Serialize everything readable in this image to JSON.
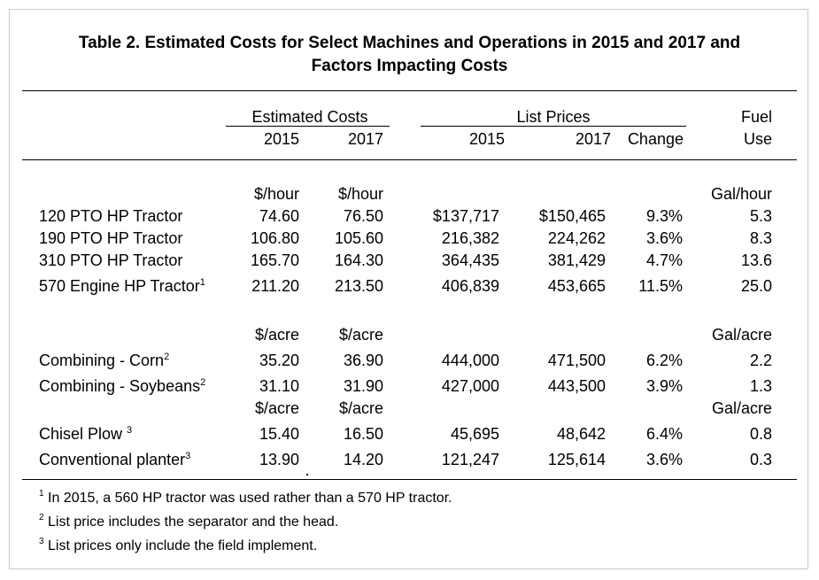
{
  "title": {
    "line1": "Table 2.  Estimated Costs for Select Machines and Operations in 2015 and 2017 and",
    "line2": "Factors Impacting Costs"
  },
  "headers": {
    "estimated_costs": "Estimated Costs",
    "list_prices": "List Prices",
    "fuel": "Fuel",
    "use": "Use",
    "y2015": "2015",
    "y2017": "2017",
    "change": "Change"
  },
  "units": {
    "tractors": {
      "cost": "$/hour",
      "fuel": "Gal/hour"
    },
    "combines": {
      "cost": "$/acre",
      "fuel": "Gal/acre"
    },
    "tillage": {
      "cost": "$/acre",
      "fuel": "Gal/acre"
    }
  },
  "rows": [
    {
      "name": "120 PTO HP Tractor",
      "note": "",
      "c2015": "74.60",
      "c2017": "76.50",
      "p2015": "$137,717",
      "p2017": "$150,465",
      "change": "9.3%",
      "fuel": "5.3"
    },
    {
      "name": "190 PTO HP Tractor",
      "note": "",
      "c2015": "106.80",
      "c2017": "105.60",
      "p2015": "216,382",
      "p2017": "224,262",
      "change": "3.6%",
      "fuel": "8.3"
    },
    {
      "name": "310 PTO HP Tractor",
      "note": "",
      "c2015": "165.70",
      "c2017": "164.30",
      "p2015": "364,435",
      "p2017": "381,429",
      "change": "4.7%",
      "fuel": "13.6"
    },
    {
      "name": "570 Engine HP Tractor",
      "note": "1",
      "c2015": "211.20",
      "c2017": "213.50",
      "p2015": "406,839",
      "p2017": "453,665",
      "change": "11.5%",
      "fuel": "25.0"
    },
    {
      "name": "Combining - Corn",
      "note": "2",
      "c2015": "35.20",
      "c2017": "36.90",
      "p2015": "444,000",
      "p2017": "471,500",
      "change": "6.2%",
      "fuel": "2.2"
    },
    {
      "name": "Combining - Soybeans",
      "note": "2",
      "c2015": "31.10",
      "c2017": "31.90",
      "p2015": "427,000",
      "p2017": "443,500",
      "change": "3.9%",
      "fuel": "1.3"
    },
    {
      "name": "Chisel Plow ",
      "note": "3",
      "c2015": "15.40",
      "c2017": "16.50",
      "p2015": "45,695",
      "p2017": "48,642",
      "change": "6.4%",
      "fuel": "0.8"
    },
    {
      "name": "Conventional planter",
      "note": "3",
      "c2015": "13.90",
      "c2017": "14.20",
      "p2015": "121,247",
      "p2017": "125,614",
      "change": "3.6%",
      "fuel": "0.3"
    }
  ],
  "footnotes": [
    {
      "mark": "1",
      "text": " In 2015, a 560 HP tractor was used rather than a 570 HP tractor."
    },
    {
      "mark": "2",
      "text": " List price includes the separator and the head."
    },
    {
      "mark": "3",
      "text": " List prices only include the field implement."
    }
  ]
}
